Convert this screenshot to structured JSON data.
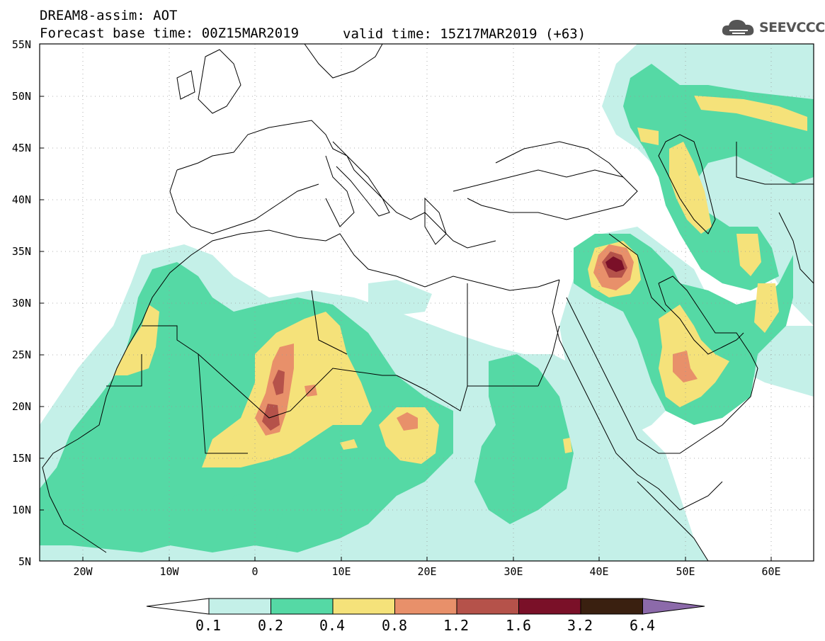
{
  "header": {
    "title": "DREAM8-assim: AOT",
    "base_time": "Forecast base time: 00Z15MAR2019",
    "valid_time": "valid time: 15Z17MAR2019 (+63)"
  },
  "logo": {
    "text": "SEEVCCC",
    "icon": "cloud-icon"
  },
  "map": {
    "lat_labels": [
      "55N",
      "50N",
      "45N",
      "40N",
      "35N",
      "30N",
      "25N",
      "20N",
      "15N",
      "10N",
      "5N"
    ],
    "lon_labels": [
      "20W",
      "10W",
      "0",
      "10E",
      "20E",
      "30E",
      "40E",
      "50E",
      "60E"
    ]
  },
  "colorbar": {
    "labels": [
      "0.1",
      "0.2",
      "0.4",
      "0.8",
      "1.2",
      "1.6",
      "3.2",
      "6.4"
    ],
    "colors": [
      "#ffffff",
      "#c4f0e8",
      "#55d9a5",
      "#f5e27a",
      "#e8906a",
      "#b5524a",
      "#7a1028",
      "#3a2010",
      "#8c6aaa"
    ]
  }
}
